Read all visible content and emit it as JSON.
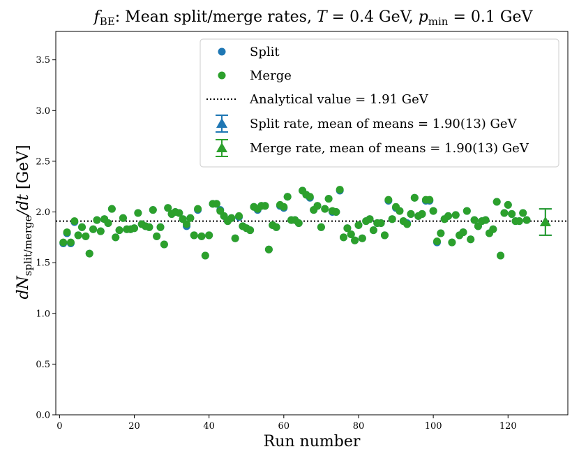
{
  "chart_data": {
    "type": "scatter",
    "title_parts": [
      "f",
      "BE",
      ": Mean split/merge rates, ",
      "T",
      " = 0.4 GeV, ",
      "p",
      "min",
      " = 0.1 GeV"
    ],
    "xlabel": "Run number",
    "ylabel_parts": [
      "dN",
      "split/merge",
      "/dt",
      " [GeV]"
    ],
    "xlim": [
      -1,
      136
    ],
    "ylim": [
      0.0,
      3.78
    ],
    "x_ticks": [
      0,
      20,
      40,
      60,
      80,
      100,
      120
    ],
    "x_tick_labels": [
      "0",
      "20",
      "40",
      "60",
      "80",
      "100",
      "120"
    ],
    "y_ticks": [
      0.0,
      0.5,
      1.0,
      1.5,
      2.0,
      2.5,
      3.0,
      3.5
    ],
    "y_tick_labels": [
      "0.0",
      "0.5",
      "1.0",
      "1.5",
      "2.0",
      "2.5",
      "3.0",
      "3.5"
    ],
    "x": [
      1,
      2,
      3,
      4,
      5,
      6,
      7,
      8,
      9,
      10,
      11,
      12,
      13,
      14,
      15,
      16,
      17,
      18,
      19,
      20,
      21,
      22,
      23,
      24,
      25,
      26,
      27,
      28,
      29,
      30,
      31,
      32,
      33,
      34,
      35,
      36,
      37,
      38,
      39,
      40,
      41,
      42,
      43,
      44,
      45,
      46,
      47,
      48,
      49,
      50,
      51,
      52,
      53,
      54,
      55,
      56,
      57,
      58,
      59,
      60,
      61,
      62,
      63,
      64,
      65,
      66,
      67,
      68,
      69,
      70,
      71,
      72,
      73,
      74,
      75,
      76,
      77,
      78,
      79,
      80,
      81,
      82,
      83,
      84,
      85,
      86,
      87,
      88,
      89,
      90,
      91,
      92,
      93,
      94,
      95,
      96,
      97,
      98,
      99,
      100,
      101,
      102,
      103,
      104,
      105,
      106,
      107,
      108,
      109,
      110,
      111,
      112,
      113,
      114,
      115,
      116,
      117,
      118,
      119,
      120,
      121,
      122,
      123,
      124,
      125
    ],
    "series": [
      {
        "name": "Split",
        "color": "#1f77b4",
        "values": [
          1.69,
          1.79,
          1.69,
          1.9,
          1.77,
          1.85,
          1.76,
          1.59,
          1.83,
          1.92,
          1.81,
          1.93,
          1.89,
          2.03,
          1.75,
          1.82,
          1.94,
          1.83,
          1.83,
          1.84,
          1.99,
          1.88,
          1.86,
          1.85,
          2.02,
          1.76,
          1.85,
          1.68,
          2.04,
          1.98,
          2.0,
          1.99,
          1.93,
          1.86,
          1.94,
          1.77,
          2.02,
          1.76,
          1.57,
          1.77,
          2.08,
          2.08,
          2.02,
          1.96,
          1.91,
          1.94,
          1.74,
          1.95,
          1.86,
          1.84,
          1.82,
          2.05,
          2.02,
          2.06,
          2.06,
          1.63,
          1.87,
          1.85,
          2.06,
          2.04,
          2.15,
          1.92,
          1.92,
          1.89,
          2.21,
          2.17,
          2.14,
          2.02,
          2.06,
          1.85,
          2.03,
          2.13,
          2.0,
          2.0,
          2.21,
          1.75,
          1.84,
          1.78,
          1.72,
          1.87,
          1.74,
          1.91,
          1.93,
          1.82,
          1.89,
          1.89,
          1.77,
          2.11,
          1.93,
          2.04,
          2.01,
          1.91,
          1.89,
          1.98,
          2.14,
          1.96,
          1.98,
          2.11,
          2.11,
          2.01,
          1.7,
          1.79,
          1.93,
          1.96,
          1.7,
          1.97,
          1.77,
          1.8,
          2.01,
          1.73,
          1.92,
          1.86,
          1.91,
          1.92,
          1.79,
          1.83,
          2.1,
          1.57,
          1.99,
          2.07,
          1.98,
          1.91,
          1.91,
          1.99,
          1.92
        ]
      },
      {
        "name": "Merge",
        "color": "#2ca02c",
        "values": [
          1.7,
          1.8,
          1.7,
          1.91,
          1.77,
          1.85,
          1.76,
          1.59,
          1.83,
          1.92,
          1.81,
          1.93,
          1.89,
          2.03,
          1.75,
          1.82,
          1.94,
          1.83,
          1.83,
          1.84,
          1.99,
          1.88,
          1.86,
          1.85,
          2.02,
          1.76,
          1.85,
          1.68,
          2.04,
          1.98,
          2.0,
          1.99,
          1.93,
          1.88,
          1.94,
          1.77,
          2.03,
          1.76,
          1.57,
          1.77,
          2.08,
          2.08,
          2.01,
          1.96,
          1.91,
          1.94,
          1.74,
          1.96,
          1.86,
          1.84,
          1.82,
          2.05,
          2.03,
          2.06,
          2.06,
          1.63,
          1.87,
          1.85,
          2.07,
          2.05,
          2.15,
          1.92,
          1.92,
          1.89,
          2.21,
          2.17,
          2.15,
          2.02,
          2.06,
          1.85,
          2.03,
          2.13,
          2.01,
          2.0,
          2.22,
          1.75,
          1.84,
          1.78,
          1.72,
          1.87,
          1.74,
          1.91,
          1.93,
          1.82,
          1.89,
          1.89,
          1.77,
          2.12,
          1.93,
          2.05,
          2.01,
          1.91,
          1.88,
          1.98,
          2.14,
          1.96,
          1.98,
          2.12,
          2.12,
          2.01,
          1.71,
          1.79,
          1.93,
          1.96,
          1.7,
          1.97,
          1.77,
          1.8,
          2.01,
          1.73,
          1.92,
          1.86,
          1.91,
          1.92,
          1.79,
          1.83,
          2.1,
          1.57,
          1.99,
          2.07,
          1.98,
          1.91,
          1.91,
          1.99,
          1.92
        ]
      }
    ],
    "reference_line": {
      "label": "Analytical value = 1.91 GeV",
      "y": 1.91,
      "style": "dotted",
      "color": "#000000"
    },
    "summary_points": [
      {
        "name": "Split rate, mean of means = 1.90(13) GeV",
        "x": 130,
        "y": 1.9,
        "err": 0.13,
        "color": "#1f77b4",
        "marker": "triangle"
      },
      {
        "name": "Merge rate, mean of means = 1.90(13) GeV",
        "x": 130,
        "y": 1.9,
        "err": 0.13,
        "color": "#2ca02c",
        "marker": "triangle"
      }
    ],
    "legend": {
      "placement": "top-right",
      "entries": [
        "Split",
        "Merge",
        "Analytical value = 1.91 GeV",
        "Split rate, mean of means = 1.90(13) GeV",
        "Merge rate, mean of means = 1.90(13) GeV"
      ]
    }
  }
}
